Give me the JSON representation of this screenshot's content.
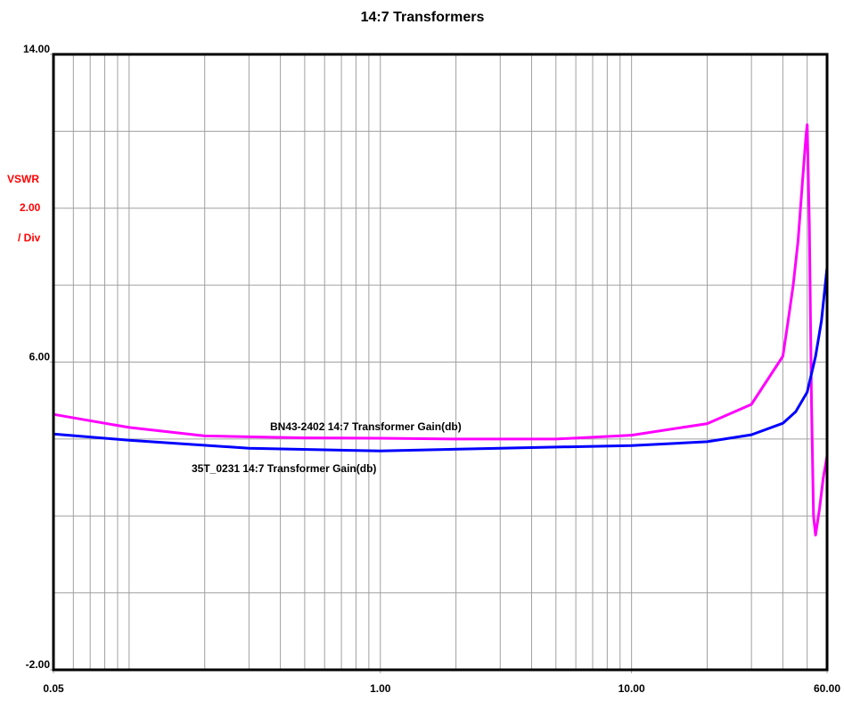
{
  "chart_data": {
    "type": "line",
    "title": "14:7 Transformers",
    "ylabel_lines": [
      "VSWR",
      "2.00",
      "/ Div"
    ],
    "xscale": "log",
    "xlim": [
      0.05,
      60
    ],
    "ylim": [
      -2,
      14
    ],
    "xticks": [
      {
        "value": 0.05,
        "label": "0.05"
      },
      {
        "value": 1,
        "label": "1.00"
      },
      {
        "value": 10,
        "label": "10.00"
      },
      {
        "value": 60,
        "label": "60.00"
      }
    ],
    "yticks": [
      {
        "value": -2,
        "label": "-2.00"
      },
      {
        "value": 6,
        "label": "6.00"
      },
      {
        "value": 14,
        "label": "14.00"
      }
    ],
    "xgrid": [
      0.06,
      0.07,
      0.08,
      0.09,
      0.1,
      0.2,
      0.3,
      0.4,
      0.5,
      0.6,
      0.7,
      0.8,
      0.9,
      1,
      2,
      3,
      4,
      5,
      6,
      7,
      8,
      9,
      10,
      20,
      30,
      40,
      50
    ],
    "ygrid": [
      0,
      2,
      4,
      6,
      8,
      10,
      12
    ],
    "series": [
      {
        "name": "BN43-2402 14:7 Transformer Gain(db)",
        "color": "#ff00ff",
        "x": [
          0.05,
          0.1,
          0.2,
          0.5,
          1,
          2,
          5,
          10,
          20,
          30,
          40,
          42,
          44,
          46,
          48,
          49.5,
          50,
          51,
          52,
          53,
          54,
          56,
          58,
          60
        ],
        "values": [
          4.64,
          4.3,
          4.08,
          4.03,
          4.02,
          4.0,
          4.0,
          4.1,
          4.4,
          4.9,
          6.15,
          7.07,
          8.0,
          9.16,
          10.78,
          11.9,
          12.17,
          9.6,
          5.0,
          2.0,
          1.5,
          2.2,
          3.0,
          3.56
        ]
      },
      {
        "name": "35T_0231 14:7 Transformer Gain(db)",
        "color": "#0000ff",
        "x": [
          0.05,
          0.1,
          0.3,
          1,
          3,
          10,
          20,
          30,
          40,
          45,
          50,
          54,
          57,
          60
        ],
        "values": [
          4.13,
          3.97,
          3.76,
          3.69,
          3.76,
          3.83,
          3.93,
          4.11,
          4.41,
          4.71,
          5.22,
          6.15,
          7.07,
          8.46
        ]
      }
    ]
  }
}
